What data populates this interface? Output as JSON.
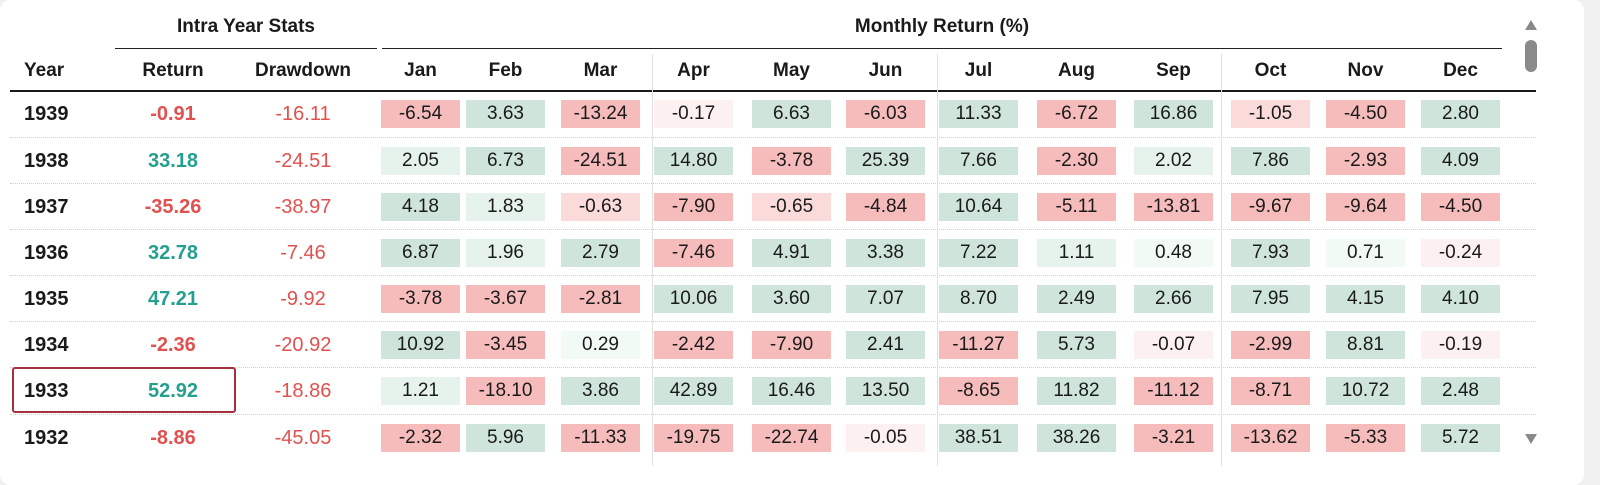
{
  "headers": {
    "intra_year_stats": "Intra Year Stats",
    "monthly_return": "Monthly Return (%)",
    "year": "Year",
    "return": "Return",
    "drawdown": "Drawdown",
    "months": [
      "Jan",
      "Feb",
      "Mar",
      "Apr",
      "May",
      "Jun",
      "Jul",
      "Aug",
      "Sep",
      "Oct",
      "Nov",
      "Dec"
    ]
  },
  "rows": [
    {
      "year": "1939",
      "return": "-0.91",
      "drawdown": "-16.11",
      "months": [
        "-6.54",
        "3.63",
        "-13.24",
        "-0.17",
        "6.63",
        "-6.03",
        "11.33",
        "-6.72",
        "16.86",
        "-1.05",
        "-4.50",
        "2.80"
      ]
    },
    {
      "year": "1938",
      "return": "33.18",
      "drawdown": "-24.51",
      "months": [
        "2.05",
        "6.73",
        "-24.51",
        "14.80",
        "-3.78",
        "25.39",
        "7.66",
        "-2.30",
        "2.02",
        "7.86",
        "-2.93",
        "4.09"
      ]
    },
    {
      "year": "1937",
      "return": "-35.26",
      "drawdown": "-38.97",
      "months": [
        "4.18",
        "1.83",
        "-0.63",
        "-7.90",
        "-0.65",
        "-4.84",
        "10.64",
        "-5.11",
        "-13.81",
        "-9.67",
        "-9.64",
        "-4.50"
      ]
    },
    {
      "year": "1936",
      "return": "32.78",
      "drawdown": "-7.46",
      "months": [
        "6.87",
        "1.96",
        "2.79",
        "-7.46",
        "4.91",
        "3.38",
        "7.22",
        "1.11",
        "0.48",
        "7.93",
        "0.71",
        "-0.24"
      ]
    },
    {
      "year": "1935",
      "return": "47.21",
      "drawdown": "-9.92",
      "months": [
        "-3.78",
        "-3.67",
        "-2.81",
        "10.06",
        "3.60",
        "7.07",
        "8.70",
        "2.49",
        "2.66",
        "7.95",
        "4.15",
        "4.10"
      ]
    },
    {
      "year": "1934",
      "return": "-2.36",
      "drawdown": "-20.92",
      "months": [
        "10.92",
        "-3.45",
        "0.29",
        "-2.42",
        "-7.90",
        "2.41",
        "-11.27",
        "5.73",
        "-0.07",
        "-2.99",
        "8.81",
        "-0.19"
      ]
    },
    {
      "year": "1933",
      "return": "52.92",
      "drawdown": "-18.86",
      "months": [
        "1.21",
        "-18.10",
        "3.86",
        "42.89",
        "16.46",
        "13.50",
        "-8.65",
        "11.82",
        "-11.12",
        "-8.71",
        "10.72",
        "2.48"
      ]
    },
    {
      "year": "1932",
      "return": "-8.86",
      "drawdown": "-45.05",
      "months": [
        "-2.32",
        "5.96",
        "-11.33",
        "-19.75",
        "-22.74",
        "-0.05",
        "38.51",
        "38.26",
        "-3.21",
        "-13.62",
        "-5.33",
        "5.72"
      ]
    }
  ],
  "highlighted_year": "1933",
  "colors": {
    "positive_text": "#26a08e",
    "negative_text": "#e0514f",
    "positive_strong": "#cfe5dc",
    "positive_light": "#e5f3ec",
    "positive_faint": "#f2faf5",
    "negative_strong": "#f6bcbc",
    "negative_light": "#fbdada",
    "negative_faint": "#fdf0f0",
    "highlight_border": "#a3313c"
  }
}
